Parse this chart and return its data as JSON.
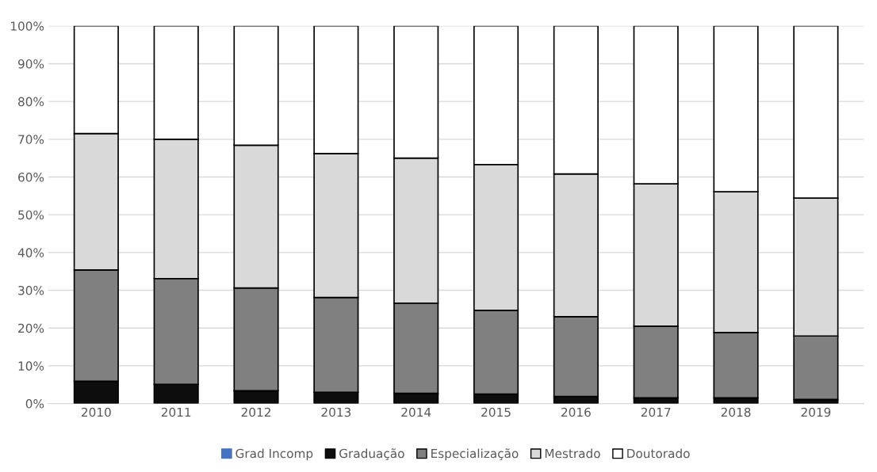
{
  "chart_data": {
    "type": "bar",
    "stacked": true,
    "categories": [
      "2010",
      "2011",
      "2012",
      "2013",
      "2014",
      "2015",
      "2016",
      "2017",
      "2018",
      "2019"
    ],
    "series": [
      {
        "name": "Grad Incomp",
        "color": "#4472c4",
        "values": [
          0,
          0,
          0,
          0,
          0,
          0,
          0,
          0,
          0,
          0
        ]
      },
      {
        "name": "Graduação",
        "color": "#0d0d0d",
        "values": [
          5.9,
          5.1,
          3.4,
          3.0,
          2.7,
          2.5,
          1.9,
          1.5,
          1.5,
          1.1
        ]
      },
      {
        "name": "Especialização",
        "color": "#808080",
        "values": [
          29.5,
          28.0,
          27.2,
          25.1,
          23.9,
          22.2,
          21.1,
          19.0,
          17.3,
          16.8
        ]
      },
      {
        "name": "Mestrado",
        "color": "#d9d9d9",
        "values": [
          36.1,
          36.9,
          37.8,
          38.1,
          38.4,
          38.6,
          37.8,
          37.7,
          37.3,
          36.5
        ]
      },
      {
        "name": "Doutorado",
        "color": "#ffffff",
        "values": [
          28.5,
          30.0,
          31.6,
          33.8,
          35.0,
          36.7,
          39.2,
          41.8,
          43.9,
          45.6
        ]
      }
    ],
    "ylim": [
      0,
      100
    ],
    "yticks": [
      {
        "value": 0,
        "label": "0%"
      },
      {
        "value": 10,
        "label": "10%"
      },
      {
        "value": 20,
        "label": "20%"
      },
      {
        "value": 30,
        "label": "30%"
      },
      {
        "value": 40,
        "label": "40%"
      },
      {
        "value": 50,
        "label": "50%"
      },
      {
        "value": 60,
        "label": "60%"
      },
      {
        "value": 70,
        "label": "70%"
      },
      {
        "value": 80,
        "label": "80%"
      },
      {
        "value": 90,
        "label": "90%"
      },
      {
        "value": 100,
        "label": "100%"
      }
    ],
    "grid": "y",
    "legend": "bottom"
  }
}
